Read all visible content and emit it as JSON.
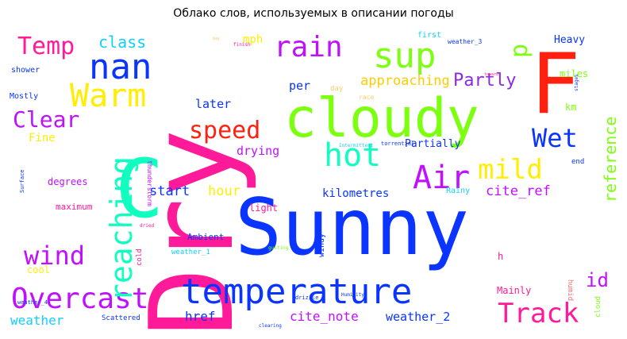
{
  "chart_data": {
    "type": "wordcloud",
    "title": "Облако слов, используемых в описании погоды",
    "words": [
      {
        "text": "Sunny",
        "color": "#0a34ff"
      },
      {
        "text": "Dry",
        "color": "#ff1a9a"
      },
      {
        "text": "cloudy",
        "color": "#7dff10"
      },
      {
        "text": "F",
        "color": "#ff2010"
      },
      {
        "text": "C",
        "color": "#10ffc0"
      },
      {
        "text": "temperature",
        "color": "#0a34ff"
      },
      {
        "text": "nan",
        "color": "#0a34ff"
      },
      {
        "text": "Warm",
        "color": "#ffee00"
      },
      {
        "text": "rain",
        "color": "#c010ff"
      },
      {
        "text": "sup",
        "color": "#7dff10"
      },
      {
        "text": "hot",
        "color": "#10ffc0"
      },
      {
        "text": "Air",
        "color": "#c010ff"
      },
      {
        "text": "mild",
        "color": "#ffee00"
      },
      {
        "text": "speed",
        "color": "#ff2010"
      },
      {
        "text": "Overcast",
        "color": "#c010ff"
      },
      {
        "text": "reaching",
        "color": "#10ffc0"
      },
      {
        "text": "Temp",
        "color": "#ff1a9a"
      },
      {
        "text": "Track",
        "color": "#ff1a9a"
      },
      {
        "text": "wind",
        "color": "#c010ff"
      },
      {
        "text": "Clear",
        "color": "#c010ff"
      },
      {
        "text": "Wet",
        "color": "#0a34ff"
      },
      {
        "text": "reference",
        "color": "#7dff10"
      },
      {
        "text": "Partly",
        "color": "#8a2be2"
      },
      {
        "text": "p",
        "color": "#7dff10"
      },
      {
        "text": "class",
        "color": "#10d0ff"
      },
      {
        "text": "id",
        "color": "#c010ff"
      },
      {
        "text": "approaching",
        "color": "#ffcc00"
      },
      {
        "text": "cite_ref",
        "color": "#c010ff"
      },
      {
        "text": "start",
        "color": "#0a34ff"
      },
      {
        "text": "hour",
        "color": "#ffee00"
      },
      {
        "text": "drying",
        "color": "#c010ff"
      },
      {
        "text": "kilometres",
        "color": "#0a34ff"
      },
      {
        "text": "Partially",
        "color": "#0a34ff"
      },
      {
        "text": "later",
        "color": "#0a34ff"
      },
      {
        "text": "per",
        "color": "#0a34ff"
      },
      {
        "text": "href",
        "color": "#0a34ff"
      },
      {
        "text": "cite_note",
        "color": "#c010ff"
      },
      {
        "text": "weather_2",
        "color": "#0a34ff"
      },
      {
        "text": "weather",
        "color": "#10d0ff"
      },
      {
        "text": "Fine",
        "color": "#ffee00"
      },
      {
        "text": "mph",
        "color": "#ffee00"
      },
      {
        "text": "Heavy",
        "color": "#0a34ff"
      },
      {
        "text": "miles",
        "color": "#7dff10"
      },
      {
        "text": "km",
        "color": "#7dff10"
      },
      {
        "text": "first",
        "color": "#10d0ff"
      },
      {
        "text": "day",
        "color": "#ffcc66"
      },
      {
        "text": "race",
        "color": "#ffcc66"
      },
      {
        "text": "light",
        "color": "#ff1a9a"
      },
      {
        "text": "degrees",
        "color": "#c010ff"
      },
      {
        "text": "maximum",
        "color": "#ff1a9a"
      },
      {
        "text": "Ambient",
        "color": "#0a34ff"
      },
      {
        "text": "weather_1",
        "color": "#10d0ff"
      },
      {
        "text": "cool",
        "color": "#ffee00"
      },
      {
        "text": "Mainly",
        "color": "#ff1a9a"
      },
      {
        "text": "Rainy",
        "color": "#10d0ff"
      },
      {
        "text": "humid",
        "color": "#ff7070"
      },
      {
        "text": "cloud",
        "color": "#7dff10"
      },
      {
        "text": "windy",
        "color": "#0a34ff"
      },
      {
        "text": "shower",
        "color": "#0a34ff"
      },
      {
        "text": "Mostly",
        "color": "#0a34ff"
      },
      {
        "text": "Scattered",
        "color": "#0a34ff"
      },
      {
        "text": "weather_3",
        "color": "#0a34ff"
      },
      {
        "text": "end",
        "color": "#0a34ff"
      },
      {
        "text": "torrential",
        "color": "#0a34ff"
      },
      {
        "text": "Intermittent",
        "color": "#10d0ff"
      },
      {
        "text": "thunderstorm",
        "color": "#c010ff"
      },
      {
        "text": "Surface",
        "color": "#0a34ff"
      },
      {
        "text": "cold",
        "color": "#ff1a9a"
      },
      {
        "text": "h",
        "color": "#ff1a9a"
      },
      {
        "text": "weather_4",
        "color": "#0a34ff"
      },
      {
        "text": "drizzle",
        "color": "#0a34ff"
      },
      {
        "text": "Humidity",
        "color": "#0a34ff"
      },
      {
        "text": "gusting",
        "color": "#7dff10"
      },
      {
        "text": "dried",
        "color": "#ff1a9a"
      },
      {
        "text": "clearing",
        "color": "#0a34ff"
      },
      {
        "text": "stages",
        "color": "#0a34ff"
      },
      {
        "text": "toward",
        "color": "#ff1a9a"
      },
      {
        "text": "finish",
        "color": "#ff1a9a"
      },
      {
        "text": "may",
        "color": "#ffcc66"
      }
    ]
  }
}
